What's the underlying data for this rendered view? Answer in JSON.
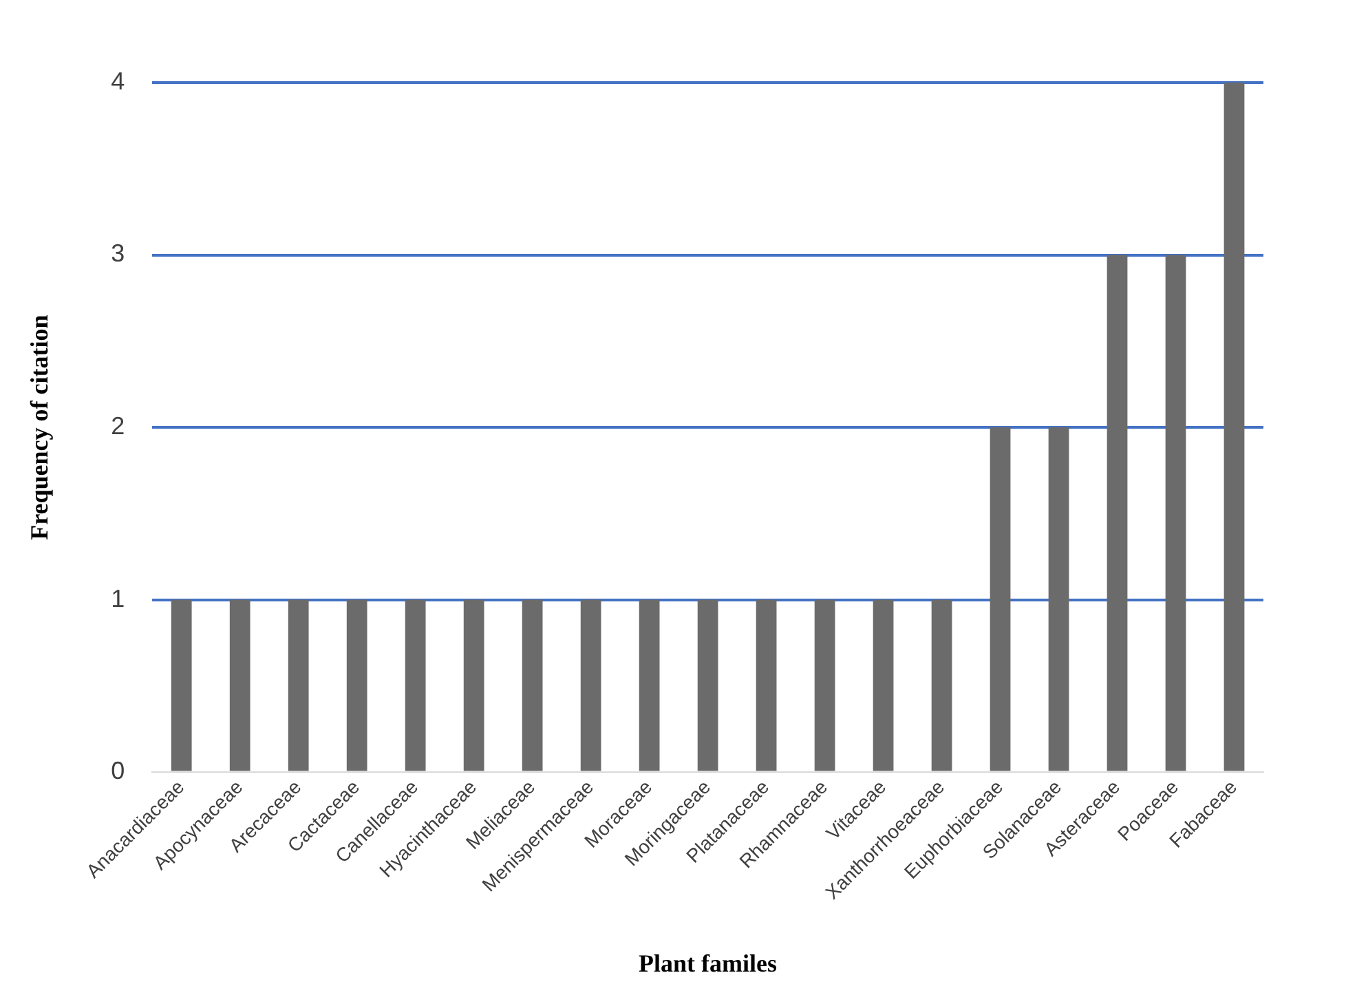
{
  "chart_data": {
    "type": "bar",
    "xlabel": "Plant familes",
    "ylabel": "Frequency of citation",
    "categories": [
      "Anacardiaceae",
      "Apocynaceae",
      "Arecaceae",
      "Cactaceae",
      "Canellaceae",
      "Hyacinthaceae",
      "Meliaceae",
      "Menispermaceae",
      "Moraceae",
      "Moringaceae",
      "Platanaceae",
      "Rhamnaceae",
      "Vitaceae",
      "Xanthorrhoeaceae",
      "Euphorbiaceae",
      "Solanaceae",
      "Asteraceae",
      "Poaceae",
      "Fabaceae"
    ],
    "values": [
      1,
      1,
      1,
      1,
      1,
      1,
      1,
      1,
      1,
      1,
      1,
      1,
      1,
      1,
      2,
      2,
      3,
      3,
      4
    ],
    "color": "#6b6b6b",
    "ylim": [
      0,
      4
    ],
    "yticks": [
      0,
      1,
      2,
      3,
      4
    ],
    "grid": "y",
    "legend": false
  }
}
